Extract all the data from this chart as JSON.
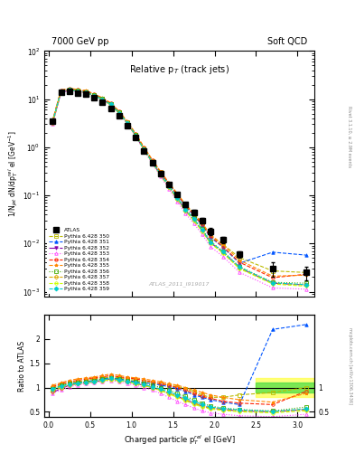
{
  "title_left": "7000 GeV pp",
  "title_right": "Soft QCD",
  "plot_title": "Relative p$_{T}$ (track jets)",
  "ylabel_main": "1/N$_{jet}$ dN/dp$^{rel}_{T}$ el [GeV$^{-1}$]",
  "ylabel_ratio": "Ratio to ATLAS",
  "xlabel": "Charged particle p$^{rel}_{T}$ el [GeV]",
  "rivet_label": "Rivet 3.1.10, ≥ 2.9M events",
  "mcplots_label": "mcplots.cern.ch [arXiv:1306.3436]",
  "ref_label": "ATLAS_2011_I919017",
  "x_data": [
    0.05,
    0.15,
    0.25,
    0.35,
    0.45,
    0.55,
    0.65,
    0.75,
    0.85,
    0.95,
    1.05,
    1.15,
    1.25,
    1.35,
    1.45,
    1.55,
    1.65,
    1.75,
    1.85,
    1.95,
    2.1,
    2.3,
    2.7,
    3.1
  ],
  "atlas_y": [
    3.5,
    14.0,
    14.5,
    13.5,
    12.5,
    10.5,
    8.5,
    6.5,
    4.5,
    2.8,
    1.6,
    0.85,
    0.48,
    0.28,
    0.17,
    0.105,
    0.065,
    0.045,
    0.03,
    0.018,
    0.012,
    0.006,
    0.003,
    0.0025
  ],
  "atlas_yerr": [
    0.3,
    0.5,
    0.5,
    0.4,
    0.4,
    0.35,
    0.3,
    0.25,
    0.2,
    0.15,
    0.1,
    0.06,
    0.04,
    0.025,
    0.015,
    0.01,
    0.007,
    0.005,
    0.004,
    0.003,
    0.002,
    0.001,
    0.001,
    0.0008
  ],
  "mc_sets": [
    {
      "label": "Pythia 6.428 350",
      "color": "#bbbb00",
      "marker": "s",
      "linestyle": "--",
      "filled": false
    },
    {
      "label": "Pythia 6.428 351",
      "color": "#0055ff",
      "marker": "^",
      "linestyle": "--",
      "filled": true
    },
    {
      "label": "Pythia 6.428 352",
      "color": "#8800aa",
      "marker": "v",
      "linestyle": "-.",
      "filled": true
    },
    {
      "label": "Pythia 6.428 353",
      "color": "#ff44ff",
      "marker": "^",
      "linestyle": ":",
      "filled": false
    },
    {
      "label": "Pythia 6.428 354",
      "color": "#ff2200",
      "marker": "o",
      "linestyle": "--",
      "filled": false
    },
    {
      "label": "Pythia 6.428 355",
      "color": "#ff8800",
      "marker": "*",
      "linestyle": "--",
      "filled": true
    },
    {
      "label": "Pythia 6.428 356",
      "color": "#44aa00",
      "marker": "s",
      "linestyle": ":",
      "filled": false
    },
    {
      "label": "Pythia 6.428 357",
      "color": "#ddaa00",
      "marker": "D",
      "linestyle": "--",
      "filled": false
    },
    {
      "label": "Pythia 6.428 358",
      "color": "#ccff00",
      "marker": "o",
      "linestyle": "--",
      "filled": false
    },
    {
      "label": "Pythia 6.428 359",
      "color": "#00cccc",
      "marker": "D",
      "linestyle": "--",
      "filled": true
    }
  ],
  "mc_ratios": [
    [
      1.0,
      1.05,
      1.1,
      1.12,
      1.15,
      1.18,
      1.2,
      1.22,
      1.2,
      1.18,
      1.15,
      1.12,
      1.1,
      1.08,
      1.05,
      1.02,
      0.98,
      0.92,
      0.85,
      0.8,
      0.8,
      0.85,
      0.9,
      1.0
    ],
    [
      0.95,
      1.02,
      1.08,
      1.1,
      1.12,
      1.15,
      1.18,
      1.2,
      1.18,
      1.15,
      1.12,
      1.1,
      1.08,
      1.05,
      1.02,
      0.98,
      0.92,
      0.85,
      0.8,
      0.75,
      0.7,
      0.65,
      2.2,
      2.3
    ],
    [
      0.9,
      0.98,
      1.05,
      1.08,
      1.1,
      1.12,
      1.15,
      1.18,
      1.15,
      1.12,
      1.08,
      1.05,
      1.0,
      0.95,
      0.88,
      0.82,
      0.75,
      0.68,
      0.62,
      0.58,
      0.55,
      0.52,
      0.5,
      0.55
    ],
    [
      0.88,
      0.95,
      1.02,
      1.05,
      1.08,
      1.1,
      1.12,
      1.15,
      1.12,
      1.08,
      1.05,
      1.0,
      0.95,
      0.88,
      0.8,
      0.72,
      0.65,
      0.58,
      0.52,
      0.48,
      0.45,
      0.42,
      0.4,
      0.45
    ],
    [
      1.02,
      1.08,
      1.12,
      1.15,
      1.18,
      1.2,
      1.22,
      1.25,
      1.22,
      1.2,
      1.18,
      1.15,
      1.12,
      1.08,
      1.05,
      1.0,
      0.95,
      0.88,
      0.82,
      0.78,
      0.72,
      0.68,
      0.65,
      0.92
    ],
    [
      1.05,
      1.1,
      1.15,
      1.18,
      1.2,
      1.22,
      1.25,
      1.28,
      1.25,
      1.22,
      1.2,
      1.18,
      1.15,
      1.12,
      1.08,
      1.05,
      1.0,
      0.95,
      0.9,
      0.85,
      0.8,
      0.75,
      0.7,
      0.88
    ],
    [
      0.98,
      1.05,
      1.08,
      1.1,
      1.12,
      1.15,
      1.18,
      1.2,
      1.18,
      1.15,
      1.12,
      1.08,
      1.05,
      1.0,
      0.95,
      0.88,
      0.82,
      0.75,
      0.68,
      0.62,
      0.58,
      0.55,
      0.52,
      0.6
    ],
    [
      0.92,
      1.0,
      1.05,
      1.08,
      1.1,
      1.12,
      1.15,
      1.18,
      1.15,
      1.12,
      1.08,
      1.05,
      1.0,
      0.95,
      0.88,
      0.82,
      0.75,
      0.68,
      0.62,
      0.58,
      0.55,
      0.52,
      0.5,
      0.55
    ],
    [
      0.95,
      1.02,
      1.06,
      1.08,
      1.1,
      1.12,
      1.14,
      1.16,
      1.14,
      1.12,
      1.08,
      1.04,
      1.0,
      0.94,
      0.87,
      0.8,
      0.73,
      0.66,
      0.6,
      0.56,
      0.53,
      0.5,
      0.48,
      0.52
    ],
    [
      0.97,
      1.03,
      1.07,
      1.09,
      1.11,
      1.13,
      1.16,
      1.19,
      1.16,
      1.13,
      1.1,
      1.06,
      1.02,
      0.97,
      0.91,
      0.85,
      0.78,
      0.72,
      0.65,
      0.6,
      0.57,
      0.54,
      0.51,
      0.56
    ]
  ],
  "ylim_main": [
    0.0008,
    100
  ],
  "ylim_ratio": [
    0.4,
    2.5
  ],
  "xlim": [
    -0.05,
    3.2
  ],
  "band_yellow": [
    0.8,
    1.2
  ],
  "band_green": [
    0.9,
    1.1
  ],
  "background_color": "#ffffff",
  "atlas_color": "#000000",
  "atlas_marker": "s",
  "atlas_markersize": 4
}
